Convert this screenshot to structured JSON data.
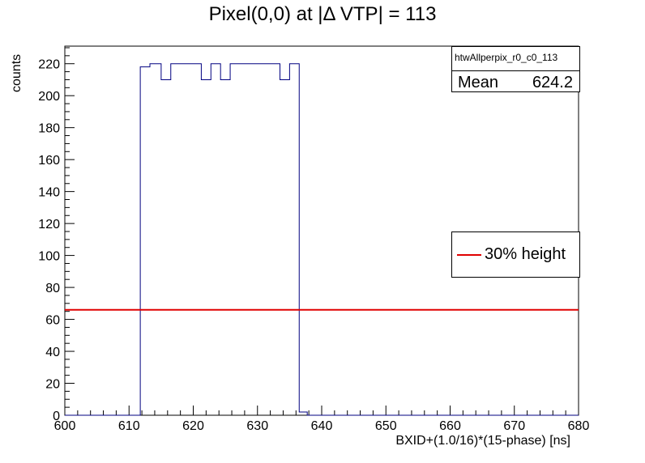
{
  "chart_data": {
    "type": "histogram",
    "title": "Pixel(0,0) at |Δ VTP| = 113",
    "xlabel": "BXID+(1.0/16)*(15-phase)  [ns]",
    "ylabel": "counts",
    "xlim": [
      600,
      680
    ],
    "ylim": [
      0,
      231
    ],
    "x_ticks": [
      "600",
      "610",
      "620",
      "630",
      "640",
      "650",
      "660",
      "670",
      "680"
    ],
    "y_ticks": [
      "0",
      "20",
      "40",
      "60",
      "80",
      "100",
      "120",
      "140",
      "160",
      "180",
      "200",
      "220"
    ],
    "bin_width": 0.0625,
    "series": [
      {
        "color": "#000080",
        "steps": [
          {
            "x0": 600.0,
            "x1": 611.75,
            "y": 0
          },
          {
            "x0": 611.75,
            "x1": 613.25,
            "y": 218
          },
          {
            "x0": 613.25,
            "x1": 615.0,
            "y": 220
          },
          {
            "x0": 615.0,
            "x1": 616.5,
            "y": 210
          },
          {
            "x0": 616.5,
            "x1": 621.25,
            "y": 220
          },
          {
            "x0": 621.25,
            "x1": 622.75,
            "y": 210
          },
          {
            "x0": 622.75,
            "x1": 624.25,
            "y": 220
          },
          {
            "x0": 624.25,
            "x1": 625.75,
            "y": 210
          },
          {
            "x0": 625.75,
            "x1": 633.5,
            "y": 220
          },
          {
            "x0": 633.5,
            "x1": 635.0,
            "y": 210
          },
          {
            "x0": 635.0,
            "x1": 636.5,
            "y": 220
          },
          {
            "x0": 636.5,
            "x1": 637.75,
            "y": 2
          },
          {
            "x0": 637.75,
            "x1": 680.0,
            "y": 0
          }
        ]
      }
    ],
    "reference_line": {
      "y": 66,
      "color": "#e00000",
      "label": "30% height"
    },
    "stats": {
      "name": "htwAllperpix_r0_c0_113",
      "mean_label": "Mean",
      "mean_value": "624.2"
    },
    "legend_position": "right"
  }
}
